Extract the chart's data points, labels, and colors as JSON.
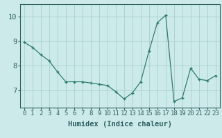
{
  "x": [
    0,
    1,
    2,
    3,
    4,
    5,
    6,
    7,
    8,
    9,
    10,
    11,
    12,
    13,
    14,
    15,
    16,
    17,
    18,
    19,
    20,
    21,
    22,
    23
  ],
  "y": [
    8.95,
    8.75,
    8.45,
    8.2,
    7.75,
    7.35,
    7.35,
    7.35,
    7.3,
    7.25,
    7.2,
    6.95,
    6.65,
    6.9,
    7.35,
    8.6,
    9.75,
    10.05,
    6.55,
    6.7,
    7.9,
    7.45,
    7.4,
    7.6
  ],
  "line_color": "#2e7b6f",
  "marker_color": "#2e7b6f",
  "bg_color": "#cceaea",
  "grid_color": "#aacfcf",
  "xlabel": "Humidex (Indice chaleur)",
  "ylim": [
    6.3,
    10.5
  ],
  "xlim": [
    -0.5,
    23.5
  ],
  "yticks": [
    7,
    8,
    9,
    10
  ],
  "xticks": [
    0,
    1,
    2,
    3,
    4,
    5,
    6,
    7,
    8,
    9,
    10,
    11,
    12,
    13,
    14,
    15,
    16,
    17,
    18,
    19,
    20,
    21,
    22,
    23
  ],
  "xtick_labels": [
    "0",
    "1",
    "2",
    "3",
    "4",
    "5",
    "6",
    "7",
    "8",
    "9",
    "10",
    "11",
    "12",
    "13",
    "14",
    "15",
    "16",
    "17",
    "18",
    "19",
    "20",
    "21",
    "22",
    "23"
  ],
  "font_color": "#2e6060",
  "tick_font_size": 6.5,
  "label_font_size": 7.5
}
